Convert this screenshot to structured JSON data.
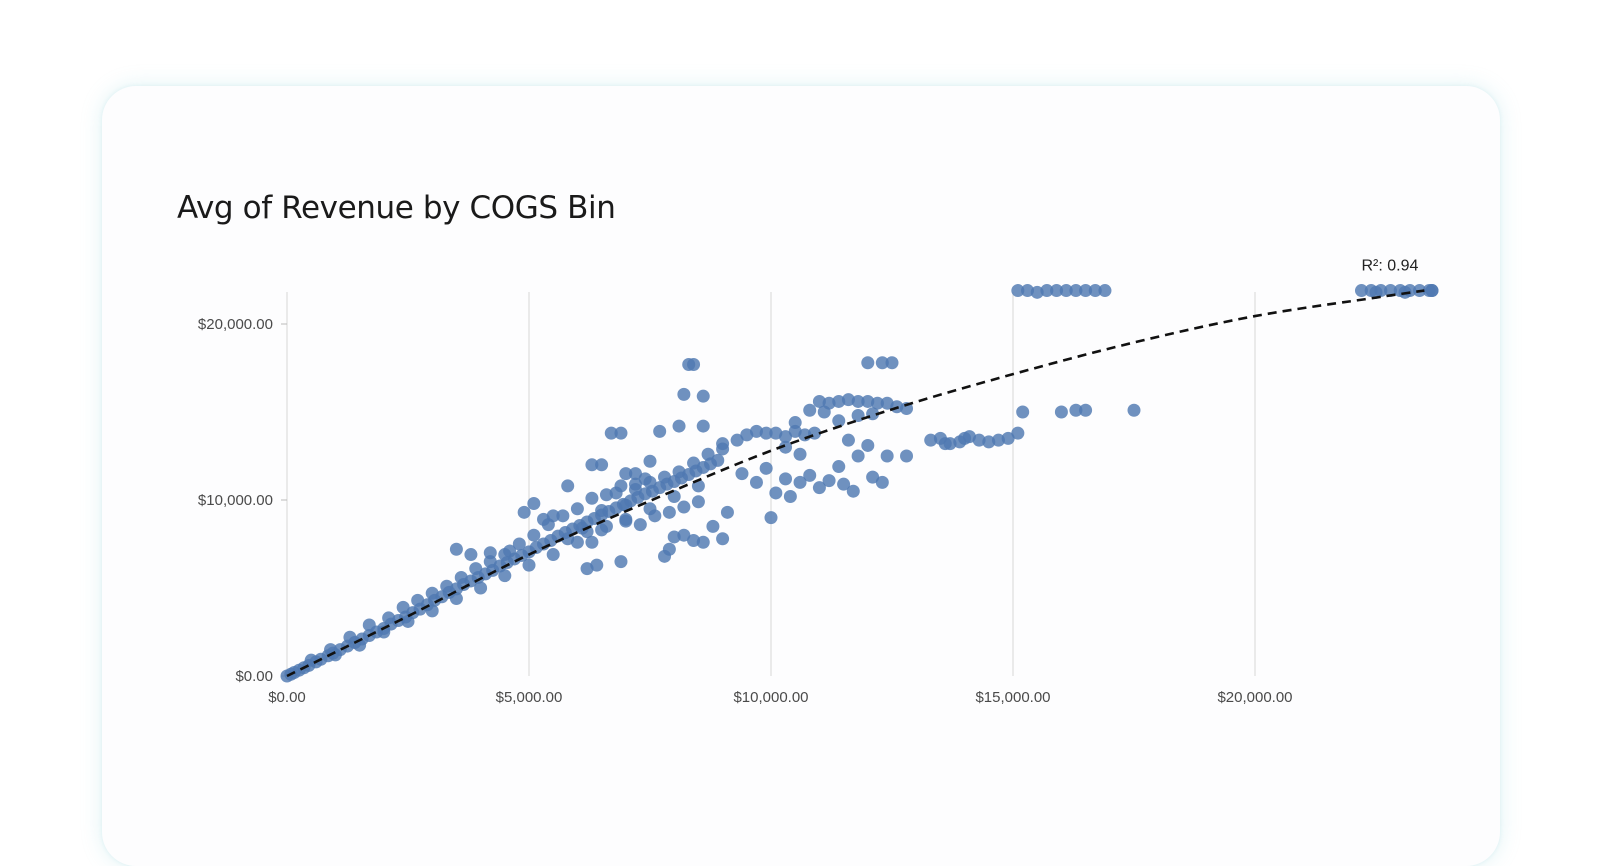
{
  "chart_data": {
    "type": "scatter",
    "title": "Avg of Revenue by COGS Bin",
    "xlabel": "",
    "ylabel": "",
    "xlim": [
      0,
      23500
    ],
    "ylim": [
      0,
      22000
    ],
    "x_ticks": [
      {
        "value": 0,
        "label": "$0.00"
      },
      {
        "value": 5000,
        "label": "$5,000.00"
      },
      {
        "value": 10000,
        "label": "$10,000.00"
      },
      {
        "value": 15000,
        "label": "$15,000.00"
      },
      {
        "value": 20000,
        "label": "$20,000.00"
      }
    ],
    "y_ticks": [
      {
        "value": 0,
        "label": "$0.00"
      },
      {
        "value": 10000,
        "label": "$10,000.00"
      },
      {
        "value": 20000,
        "label": "$20,000.00"
      }
    ],
    "grid": {
      "vertical": true,
      "horizontal": false
    },
    "point_color": "#4f79b1",
    "trendline": {
      "style": "dashed",
      "color": "#111111",
      "points": [
        [
          0,
          0
        ],
        [
          2500,
          3400
        ],
        [
          5000,
          6900
        ],
        [
          7500,
          9950
        ],
        [
          10000,
          12800
        ],
        [
          12500,
          15150
        ],
        [
          15000,
          17150
        ],
        [
          17500,
          18950
        ],
        [
          20000,
          20450
        ],
        [
          22500,
          21500
        ],
        [
          23500,
          21900
        ]
      ],
      "annotation": "R²: 0.94"
    },
    "series": [
      {
        "points": [
          [
            0,
            0
          ],
          [
            80,
            100
          ],
          [
            150,
            200
          ],
          [
            250,
            330
          ],
          [
            350,
            470
          ],
          [
            450,
            600
          ],
          [
            600,
            800
          ],
          [
            700,
            950
          ],
          [
            850,
            1150
          ],
          [
            950,
            1300
          ],
          [
            1100,
            1500
          ],
          [
            1250,
            1700
          ],
          [
            1400,
            1900
          ],
          [
            1550,
            2100
          ],
          [
            1700,
            2300
          ],
          [
            1850,
            2500
          ],
          [
            2000,
            2700
          ],
          [
            2150,
            2950
          ],
          [
            2300,
            3150
          ],
          [
            2450,
            3350
          ],
          [
            2600,
            3600
          ],
          [
            2750,
            3800
          ],
          [
            2900,
            4050
          ],
          [
            3050,
            4300
          ],
          [
            3200,
            4500
          ],
          [
            3350,
            4750
          ],
          [
            3500,
            4950
          ],
          [
            3650,
            5200
          ],
          [
            3800,
            5400
          ],
          [
            3950,
            5600
          ],
          [
            4100,
            5800
          ],
          [
            4250,
            6000
          ],
          [
            4400,
            6250
          ],
          [
            4550,
            6450
          ],
          [
            4700,
            6650
          ],
          [
            4850,
            6850
          ],
          [
            5000,
            7050
          ],
          [
            5150,
            7300
          ],
          [
            5300,
            7500
          ],
          [
            5450,
            7700
          ],
          [
            5600,
            7950
          ],
          [
            5750,
            8150
          ],
          [
            5900,
            8350
          ],
          [
            6050,
            8550
          ],
          [
            6200,
            8750
          ],
          [
            6350,
            8950
          ],
          [
            6500,
            9150
          ],
          [
            6650,
            9350
          ],
          [
            6800,
            9550
          ],
          [
            6950,
            9750
          ],
          [
            7100,
            9950
          ],
          [
            7250,
            10150
          ],
          [
            7400,
            10350
          ],
          [
            7550,
            10500
          ],
          [
            7700,
            10700
          ],
          [
            7850,
            10900
          ],
          [
            8000,
            11050
          ],
          [
            8150,
            11250
          ],
          [
            8300,
            11450
          ],
          [
            8450,
            11650
          ],
          [
            8600,
            11850
          ],
          [
            8750,
            12050
          ],
          [
            8900,
            12250
          ],
          [
            500,
            900
          ],
          [
            900,
            1500
          ],
          [
            1300,
            2200
          ],
          [
            1700,
            2900
          ],
          [
            2100,
            3300
          ],
          [
            2400,
            3900
          ],
          [
            2700,
            4300
          ],
          [
            3000,
            4700
          ],
          [
            3300,
            5100
          ],
          [
            3600,
            5600
          ],
          [
            3900,
            6100
          ],
          [
            4200,
            6500
          ],
          [
            4500,
            6900
          ],
          [
            4800,
            7500
          ],
          [
            5100,
            8000
          ],
          [
            5400,
            8600
          ],
          [
            5700,
            9100
          ],
          [
            6000,
            9500
          ],
          [
            6300,
            10100
          ],
          [
            6600,
            10300
          ],
          [
            6900,
            10800
          ],
          [
            7200,
            10600
          ],
          [
            7500,
            11000
          ],
          [
            7800,
            11300
          ],
          [
            8100,
            11600
          ],
          [
            8400,
            12100
          ],
          [
            8700,
            12600
          ],
          [
            9000,
            12900
          ],
          [
            1000,
            1200
          ],
          [
            1500,
            1750
          ],
          [
            2000,
            2500
          ],
          [
            2500,
            3100
          ],
          [
            3000,
            3700
          ],
          [
            3500,
            4400
          ],
          [
            4000,
            5000
          ],
          [
            4500,
            5700
          ],
          [
            5000,
            6300
          ],
          [
            5500,
            6900
          ],
          [
            6000,
            7600
          ],
          [
            6500,
            8300
          ],
          [
            7000,
            8900
          ],
          [
            7500,
            9500
          ],
          [
            8000,
            10200
          ],
          [
            8500,
            10800
          ],
          [
            3500,
            7200
          ],
          [
            3800,
            6900
          ],
          [
            4200,
            7000
          ],
          [
            4600,
            7100
          ],
          [
            4900,
            9300
          ],
          [
            5100,
            9800
          ],
          [
            5300,
            8900
          ],
          [
            5500,
            9100
          ],
          [
            5800,
            10800
          ],
          [
            6100,
            8400
          ],
          [
            6300,
            7600
          ],
          [
            6500,
            9400
          ],
          [
            6800,
            10400
          ],
          [
            7000,
            9700
          ],
          [
            7200,
            10900
          ],
          [
            7400,
            11200
          ],
          [
            5800,
            7800
          ],
          [
            6200,
            8200
          ],
          [
            6600,
            8500
          ],
          [
            7000,
            8800
          ],
          [
            7300,
            8600
          ],
          [
            7600,
            9100
          ],
          [
            7900,
            9300
          ],
          [
            8200,
            9600
          ],
          [
            8500,
            9900
          ],
          [
            6200,
            6100
          ],
          [
            6400,
            6300
          ],
          [
            6900,
            6500
          ],
          [
            7800,
            6800
          ],
          [
            7900,
            7200
          ],
          [
            8000,
            7900
          ],
          [
            8200,
            8000
          ],
          [
            8400,
            7700
          ],
          [
            8600,
            7600
          ],
          [
            8800,
            8500
          ],
          [
            9100,
            9300
          ],
          [
            9000,
            7800
          ],
          [
            6300,
            12000
          ],
          [
            6500,
            12000
          ],
          [
            6700,
            13800
          ],
          [
            6900,
            13800
          ],
          [
            7000,
            11500
          ],
          [
            7200,
            11500
          ],
          [
            7500,
            12200
          ],
          [
            7700,
            13900
          ],
          [
            8100,
            14200
          ],
          [
            8200,
            16000
          ],
          [
            8300,
            17700
          ],
          [
            8400,
            17700
          ],
          [
            8600,
            15900
          ],
          [
            8600,
            14200
          ],
          [
            9000,
            13200
          ],
          [
            9300,
            13400
          ],
          [
            9500,
            13700
          ],
          [
            9700,
            13900
          ],
          [
            9900,
            13800
          ],
          [
            10100,
            13800
          ],
          [
            10300,
            13600
          ],
          [
            10500,
            13900
          ],
          [
            10700,
            13700
          ],
          [
            10900,
            13800
          ],
          [
            10300,
            13000
          ],
          [
            10600,
            12600
          ],
          [
            9400,
            11500
          ],
          [
            9700,
            11000
          ],
          [
            9900,
            11800
          ],
          [
            10100,
            10400
          ],
          [
            10300,
            11200
          ],
          [
            10600,
            11000
          ],
          [
            10800,
            11400
          ],
          [
            11000,
            10700
          ],
          [
            11200,
            11100
          ],
          [
            11500,
            10900
          ],
          [
            11700,
            10500
          ],
          [
            11400,
            11900
          ],
          [
            10000,
            9000
          ],
          [
            10400,
            10200
          ],
          [
            10500,
            14400
          ],
          [
            10800,
            15100
          ],
          [
            11000,
            15600
          ],
          [
            11200,
            15500
          ],
          [
            11400,
            15600
          ],
          [
            11600,
            15700
          ],
          [
            11800,
            15600
          ],
          [
            12000,
            15600
          ],
          [
            12200,
            15500
          ],
          [
            12400,
            15500
          ],
          [
            12600,
            15300
          ],
          [
            12800,
            15200
          ],
          [
            11100,
            15000
          ],
          [
            11400,
            14500
          ],
          [
            11800,
            14800
          ],
          [
            12100,
            14900
          ],
          [
            12000,
            17800
          ],
          [
            12300,
            17800
          ],
          [
            12500,
            17800
          ],
          [
            12000,
            13100
          ],
          [
            12400,
            12500
          ],
          [
            12800,
            12500
          ],
          [
            12100,
            11300
          ],
          [
            12300,
            11000
          ],
          [
            11800,
            12500
          ],
          [
            11600,
            13400
          ],
          [
            13300,
            13400
          ],
          [
            13500,
            13500
          ],
          [
            13700,
            13200
          ],
          [
            13900,
            13300
          ],
          [
            14100,
            13600
          ],
          [
            14300,
            13400
          ],
          [
            14500,
            13300
          ],
          [
            14700,
            13400
          ],
          [
            14900,
            13500
          ],
          [
            15100,
            13800
          ],
          [
            13600,
            13200
          ],
          [
            14000,
            13500
          ],
          [
            15200,
            15000
          ],
          [
            16000,
            15000
          ],
          [
            16300,
            15100
          ],
          [
            16500,
            15100
          ],
          [
            17500,
            15100
          ],
          [
            15100,
            21900
          ],
          [
            15300,
            21900
          ],
          [
            15500,
            21800
          ],
          [
            15700,
            21900
          ],
          [
            15900,
            21900
          ],
          [
            16100,
            21900
          ],
          [
            16300,
            21900
          ],
          [
            16500,
            21900
          ],
          [
            16700,
            21900
          ],
          [
            16900,
            21900
          ],
          [
            22200,
            21900
          ],
          [
            22400,
            21900
          ],
          [
            22600,
            21900
          ],
          [
            22800,
            21900
          ],
          [
            23000,
            21900
          ],
          [
            23200,
            21900
          ],
          [
            23400,
            21900
          ],
          [
            23600,
            21900
          ],
          [
            23800,
            21900
          ],
          [
            24000,
            21900
          ],
          [
            22500,
            21800
          ],
          [
            23100,
            21800
          ]
        ]
      }
    ]
  }
}
